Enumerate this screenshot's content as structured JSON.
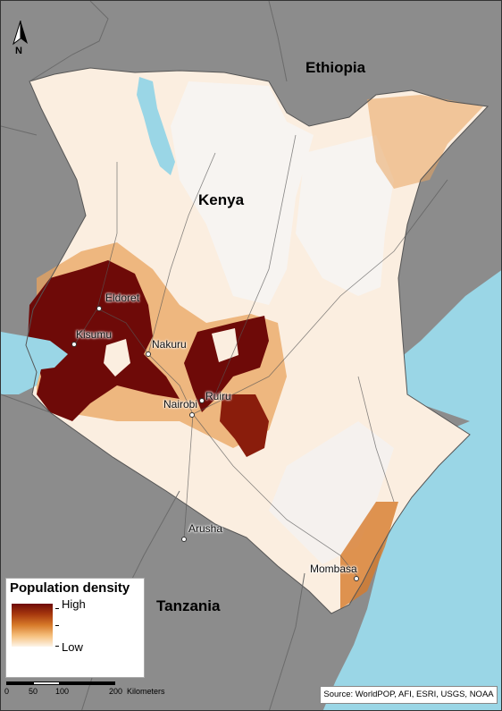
{
  "map": {
    "countries": [
      {
        "name": "Ethiopia"
      },
      {
        "name": "Kenya"
      },
      {
        "name": "Tanzania"
      }
    ],
    "cities": [
      {
        "name": "Eldoret"
      },
      {
        "name": "Kisumu"
      },
      {
        "name": "Nakuru"
      },
      {
        "name": "Nairobi"
      },
      {
        "name": "Ruiru"
      },
      {
        "name": "Arusha"
      },
      {
        "name": "Mombasa"
      }
    ],
    "north_arrow": {
      "label": "N"
    },
    "colors": {
      "high": "#6e0a08",
      "mid": "#d77a2a",
      "low": "#fdf4e8",
      "water": "#9ad6e6",
      "neighbors": "#8c8c8c"
    }
  },
  "legend": {
    "title": "Population density",
    "high_label": "High",
    "low_label": "Low"
  },
  "scale_bar": {
    "ticks": [
      "0",
      "50",
      "100",
      "200"
    ],
    "unit": "Kilometers"
  },
  "source": "Source: WorldPOP, AFI, ESRI, USGS, NOAA"
}
